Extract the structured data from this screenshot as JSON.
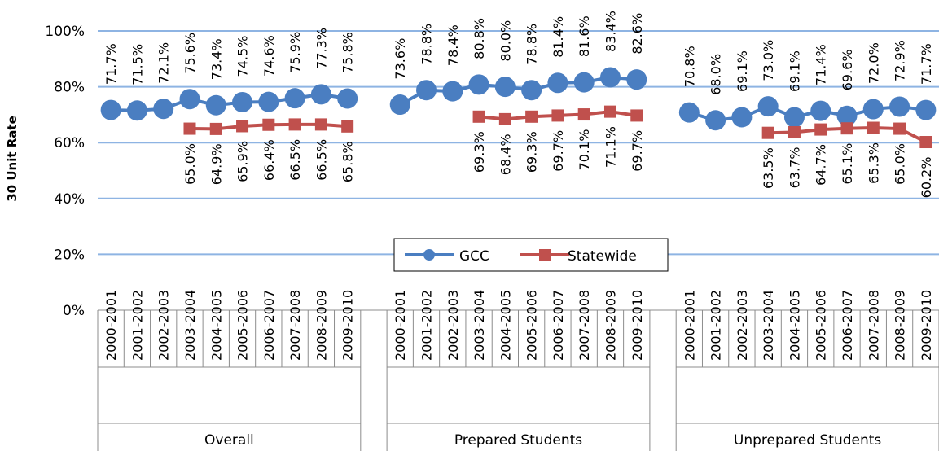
{
  "chart_data": {
    "type": "line",
    "ylabel": "30 Unit Rate",
    "ylim": [
      0,
      100
    ],
    "y_ticks": [
      "0%",
      "20%",
      "40%",
      "60%",
      "80%",
      "100%"
    ],
    "y_tick_values": [
      0,
      20,
      40,
      60,
      80,
      100
    ],
    "grid": true,
    "legend_placement": "center",
    "groups": [
      {
        "name": "Overall",
        "categories": [
          "2000-2001",
          "2001-2002",
          "2002-2003",
          "2003-2004",
          "2004-2005",
          "2005-2006",
          "2006-2007",
          "2007-2008",
          "2008-2009",
          "2009-2010"
        ],
        "series": [
          {
            "name": "GCC",
            "values": [
              71.7,
              71.5,
              72.1,
              75.6,
              73.4,
              74.5,
              74.6,
              75.9,
              77.3,
              75.8
            ],
            "labels": [
              "71.7%",
              "71.5%",
              "72.1%",
              "75.6%",
              "73.4%",
              "74.5%",
              "74.6%",
              "75.9%",
              "77.3%",
              "75.8%"
            ]
          },
          {
            "name": "Statewide",
            "values": [
              null,
              null,
              null,
              65.0,
              64.9,
              65.9,
              66.4,
              66.5,
              66.5,
              65.8
            ],
            "labels": [
              null,
              null,
              null,
              "65.0%",
              "64.9%",
              "65.9%",
              "66.4%",
              "66.5%",
              "66.5%",
              "65.8%"
            ]
          }
        ]
      },
      {
        "name": "Prepared Students",
        "categories": [
          "2000-2001",
          "2001-2002",
          "2002-2003",
          "2003-2004",
          "2004-2005",
          "2005-2006",
          "2006-2007",
          "2007-2008",
          "2008-2009",
          "2009-2010"
        ],
        "series": [
          {
            "name": "GCC",
            "values": [
              73.6,
              78.8,
              78.4,
              80.8,
              80.0,
              78.8,
              81.4,
              81.6,
              83.4,
              82.6
            ],
            "labels": [
              "73.6%",
              "78.8%",
              "78.4%",
              "80.8%",
              "80.0%",
              "78.8%",
              "81.4%",
              "81.6%",
              "83.4%",
              "82.6%"
            ]
          },
          {
            "name": "Statewide",
            "values": [
              null,
              null,
              null,
              69.3,
              68.4,
              69.3,
              69.7,
              70.1,
              71.1,
              69.7
            ],
            "labels": [
              null,
              null,
              null,
              "69.3%",
              "68.4%",
              "69.3%",
              "69.7%",
              "70.1%",
              "71.1%",
              "69.7%"
            ]
          }
        ]
      },
      {
        "name": "Unprepared Students",
        "categories": [
          "2000-2001",
          "2001-2002",
          "2002-2003",
          "2003-2004",
          "2004-2005",
          "2005-2006",
          "2006-2007",
          "2007-2008",
          "2008-2009",
          "2009-2010"
        ],
        "series": [
          {
            "name": "GCC",
            "values": [
              70.8,
              68.0,
              69.1,
              73.0,
              69.1,
              71.4,
              69.6,
              72.0,
              72.9,
              71.7
            ],
            "labels": [
              "70.8%",
              "68.0%",
              "69.1%",
              "73.0%",
              "69.1%",
              "71.4%",
              "69.6%",
              "72.0%",
              "72.9%",
              "71.7%"
            ]
          },
          {
            "name": "Statewide",
            "values": [
              null,
              null,
              null,
              63.5,
              63.7,
              64.7,
              65.1,
              65.3,
              65.0,
              60.2
            ],
            "labels": [
              null,
              null,
              null,
              "63.5%",
              "63.7%",
              "64.7%",
              "65.1%",
              "65.3%",
              "65.0%",
              "60.2%"
            ]
          }
        ]
      }
    ],
    "legend": [
      {
        "name": "GCC",
        "color": "#4A7EC1",
        "marker": "circle"
      },
      {
        "name": "Statewide",
        "color": "#C0504D",
        "marker": "square"
      }
    ]
  }
}
